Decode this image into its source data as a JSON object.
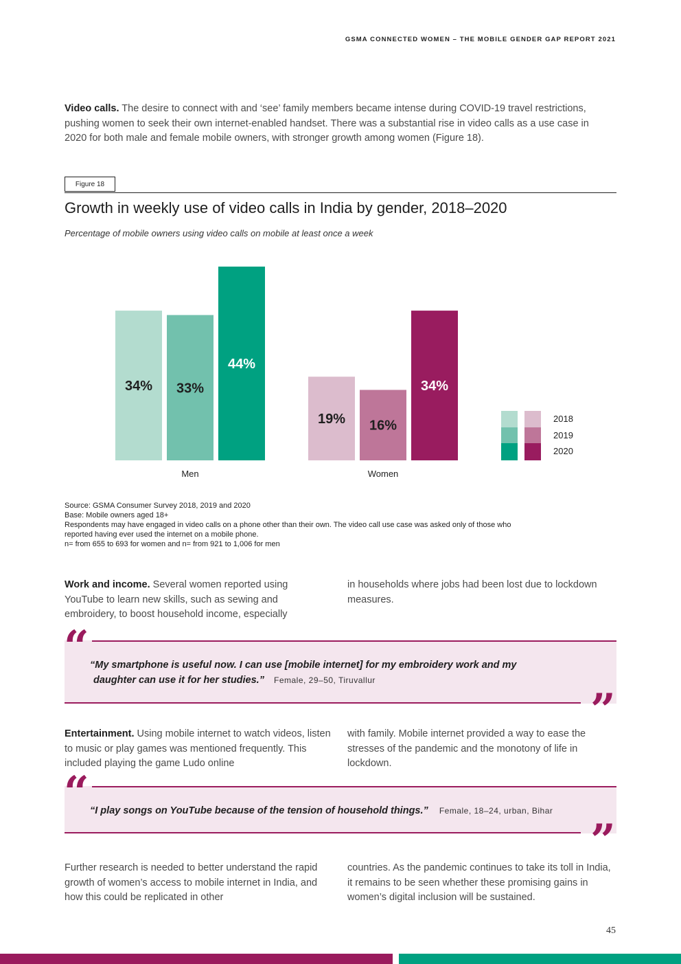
{
  "header": {
    "report_title": "GSMA CONNECTED WOMEN – THE MOBILE GENDER GAP REPORT 2021"
  },
  "intro": {
    "lead": "Video calls.",
    "text": " The desire to connect with and ‘see’ family members became intense during COVID-19 travel restrictions, pushing women to seek their own internet-enabled handset. There was a substantial rise in video calls as a use case in 2020 for both male and female mobile owners, with stronger growth among women (Figure 18)."
  },
  "figure": {
    "tag": "Figure 18",
    "title": "Growth in weekly use of video calls in India by gender, 2018–2020",
    "subtitle": "Percentage of mobile owners using video calls on mobile at least once a week"
  },
  "chart_data": {
    "type": "bar",
    "title": "Growth in weekly use of video calls in India by gender, 2018–2020",
    "subtitle": "Percentage of mobile owners using video calls on mobile at least once a week",
    "categories": [
      "Men",
      "Women"
    ],
    "series": [
      {
        "name": "2018",
        "values": [
          34,
          19
        ],
        "labels": [
          "34%",
          "19%"
        ]
      },
      {
        "name": "2019",
        "values": [
          33,
          16
        ],
        "labels": [
          "33%",
          "16%"
        ]
      },
      {
        "name": "2020",
        "values": [
          44,
          34
        ],
        "labels": [
          "44%",
          "34%"
        ]
      }
    ],
    "colors": {
      "Men": [
        "#b3dccf",
        "#72c1ad",
        "#00a181"
      ],
      "Women": [
        "#dcbccd",
        "#be7699",
        "#991c5f"
      ]
    },
    "label_colors": {
      "Men": [
        "#1f1f1f",
        "#1f1f1f",
        "#ffffff"
      ],
      "Women": [
        "#1f1f1f",
        "#1f1f1f",
        "#ffffff"
      ]
    },
    "legend": [
      "2018",
      "2019",
      "2020"
    ],
    "legend_position": "right",
    "ylim": [
      0,
      44
    ],
    "xlabel": "",
    "ylabel": ""
  },
  "notes": {
    "source": "Source: GSMA Consumer Survey 2018, 2019 and 2020",
    "base": "Base: Mobile owners aged 18+",
    "note_line1": "Respondents may have engaged in video calls on a phone other than their own. The video call use case was asked only of those who",
    "note_line2": "reported having ever used the internet on a mobile phone.",
    "sample": "n= from 655 to 693 for women and n= from 921 to 1,006 for men"
  },
  "work": {
    "lead": "Work and income.",
    "col1": " Several women reported using YouTube to learn new skills, such as sewing and embroidery, to boost household income, especially",
    "col2": "in households where jobs had been lost due to lockdown measures."
  },
  "quote1": {
    "line1": "“My smartphone is useful now. I can use [mobile internet] for my embroidery work and my",
    "line2": "daughter can use it for her studies.”",
    "attribution": "Female, 29–50, Tiruvallur"
  },
  "entertainment": {
    "lead": "Entertainment.",
    "col1": " Using mobile internet to watch videos, listen to music or play games was mentioned frequently. This included playing the game Ludo online",
    "col2": "with family. Mobile internet provided a way to ease the stresses of the pandemic and the monotony of life in lockdown."
  },
  "quote2": {
    "text": "“I play songs on YouTube because of the tension of household things.”",
    "attribution": "Female, 18–24, urban, Bihar"
  },
  "closing": {
    "col1": "Further research is needed to better understand the rapid growth of women’s access to mobile internet in India, and how this could be replicated in other",
    "col2": "countries. As the pandemic continues to take its toll in India, it remains to be seen whether these promising gains in women’s digital inclusion will be sustained."
  },
  "quote_marks": {
    "open": "“",
    "close": "”"
  },
  "page_number": "45",
  "colors": {
    "accent_magenta": "#9a1b5d",
    "accent_green": "#00a181",
    "quote_bg": "#f4e6ee"
  }
}
